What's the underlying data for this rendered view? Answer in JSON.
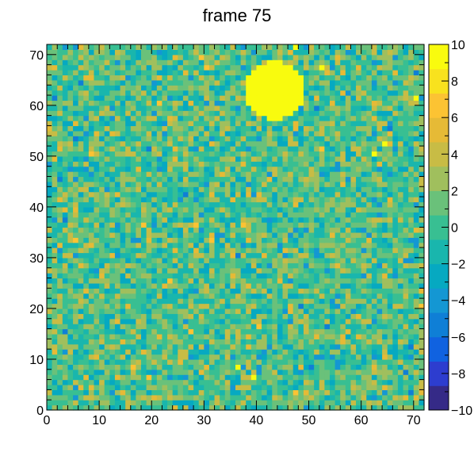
{
  "chart_data": {
    "type": "heatmap",
    "title": "frame 75",
    "xlabel": "",
    "ylabel": "",
    "xlim": [
      0,
      72
    ],
    "ylim": [
      0,
      72
    ],
    "nx": 72,
    "ny": 72,
    "zlim": [
      -10,
      10
    ],
    "x_ticks": [
      0,
      10,
      20,
      30,
      40,
      50,
      60,
      70
    ],
    "y_ticks": [
      0,
      10,
      20,
      30,
      40,
      50,
      60,
      70
    ],
    "x_tick_labels": [
      "0",
      "10",
      "20",
      "30",
      "40",
      "50",
      "60",
      "70"
    ],
    "y_tick_labels": [
      "0",
      "10",
      "20",
      "30",
      "40",
      "50",
      "60",
      "70"
    ],
    "colorbar_ticks": [
      10,
      8,
      6,
      4,
      2,
      0,
      -2,
      -4,
      -6,
      -8,
      -10
    ],
    "colorbar_tick_labels": [
      "10",
      "8",
      "6",
      "4",
      "2",
      "0",
      "−2",
      "−4",
      "−6",
      "−8",
      "−10"
    ],
    "background": {
      "mean": 0.6,
      "spread": 2.2
    },
    "hot_region": {
      "shape": "disk",
      "center": [
        43.5,
        63
      ],
      "radius": 5.6,
      "value": 10
    },
    "hot_pixels": [
      {
        "x": 47,
        "y": 71,
        "value": 10
      },
      {
        "x": 52,
        "y": 67,
        "value": 10
      },
      {
        "x": 70,
        "y": 61,
        "value": 9
      },
      {
        "x": 64,
        "y": 52,
        "value": 10
      },
      {
        "x": 62,
        "y": 50,
        "value": 10
      },
      {
        "x": 36,
        "y": 8,
        "value": 10
      },
      {
        "x": 39,
        "y": 6,
        "value": 10
      }
    ],
    "colormap": [
      "#352a87",
      "#2d3dcf",
      "#1062e0",
      "#0f7fd6",
      "#1497d3",
      "#06a9c1",
      "#19b6ad",
      "#38bf92",
      "#6ac17a",
      "#a0bf5d",
      "#c8bc45",
      "#e6ba36",
      "#fcc333",
      "#f8e21e",
      "#f9fb0e"
    ]
  }
}
